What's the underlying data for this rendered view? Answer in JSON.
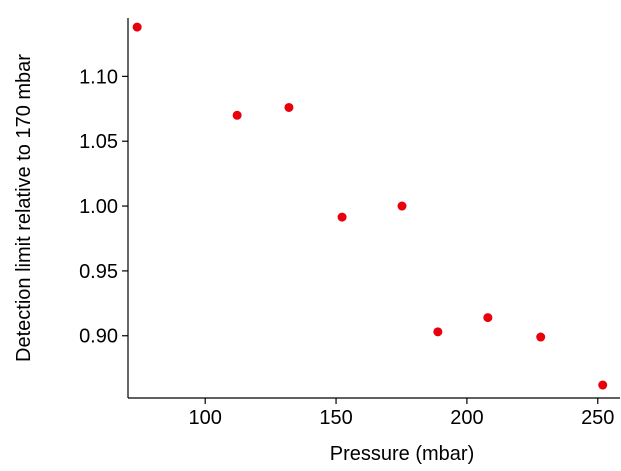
{
  "chart_data": {
    "type": "scatter",
    "x_label": "Pressure (mbar)",
    "y_label": "Detection limit relative to 170 mbar",
    "series": [
      {
        "color": "#e8000b",
        "x": [
          74,
          112.2,
          132,
          152.3,
          175.2,
          188.9,
          208,
          228.2,
          251.9
        ],
        "values": [
          1.138,
          1.07,
          1.076,
          0.9915,
          1.0,
          0.903,
          0.914,
          0.899,
          0.862
        ]
      }
    ],
    "xlim": [
      70.5,
      258.5
    ],
    "xticks": [
      100,
      150,
      200,
      250
    ],
    "ylim": [
      0.852,
      1.145
    ],
    "yticks": [
      {
        "value": 0.9,
        "label": "0.90"
      },
      {
        "value": 0.95,
        "label": "0.95"
      },
      {
        "value": 1.0,
        "label": "1.00"
      },
      {
        "value": 1.05,
        "label": "1.05"
      },
      {
        "value": 1.1,
        "label": "1.10"
      }
    ]
  }
}
